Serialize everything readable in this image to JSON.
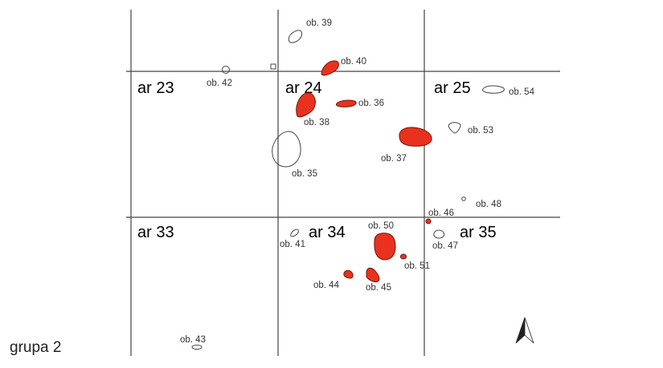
{
  "map": {
    "group_label": "grupa 2",
    "areas": [
      {
        "id": "ar23",
        "label": "ar 23"
      },
      {
        "id": "ar24",
        "label": "ar 24"
      },
      {
        "id": "ar25",
        "label": "ar 25"
      },
      {
        "id": "ar33",
        "label": "ar 33"
      },
      {
        "id": "ar34",
        "label": "ar 34"
      },
      {
        "id": "ar35",
        "label": "ar 35"
      }
    ],
    "features": [
      {
        "id": "ob39",
        "label": "ob. 39",
        "fill": "none"
      },
      {
        "id": "ob40",
        "label": "ob. 40",
        "fill": "red"
      },
      {
        "id": "ob42",
        "label": "ob. 42",
        "fill": "none"
      },
      {
        "id": "ob36",
        "label": "ob. 36",
        "fill": "red"
      },
      {
        "id": "ob38",
        "label": "ob. 38",
        "fill": "red"
      },
      {
        "id": "ob54",
        "label": "ob. 54",
        "fill": "none"
      },
      {
        "id": "ob53",
        "label": "ob. 53",
        "fill": "none"
      },
      {
        "id": "ob37",
        "label": "ob. 37",
        "fill": "red"
      },
      {
        "id": "ob35",
        "label": "ob. 35",
        "fill": "none"
      },
      {
        "id": "ob48",
        "label": "ob. 48",
        "fill": "none"
      },
      {
        "id": "ob46",
        "label": "ob. 46",
        "fill": "red"
      },
      {
        "id": "ob50",
        "label": "ob. 50",
        "fill": "red"
      },
      {
        "id": "ob41",
        "label": "ob. 41",
        "fill": "none"
      },
      {
        "id": "ob47",
        "label": "ob. 47",
        "fill": "none"
      },
      {
        "id": "ob51",
        "label": "ob. 51",
        "fill": "red"
      },
      {
        "id": "ob44",
        "label": "ob. 44",
        "fill": "red"
      },
      {
        "id": "ob45",
        "label": "ob. 45",
        "fill": "red"
      },
      {
        "id": "ob43",
        "label": "ob. 43",
        "fill": "none"
      }
    ],
    "colors": {
      "feature_fill": "#e8321e",
      "feature_stroke": "#7a1208",
      "grid": "#444444",
      "background": "#ffffff"
    },
    "north_arrow": "north-arrow-icon"
  }
}
